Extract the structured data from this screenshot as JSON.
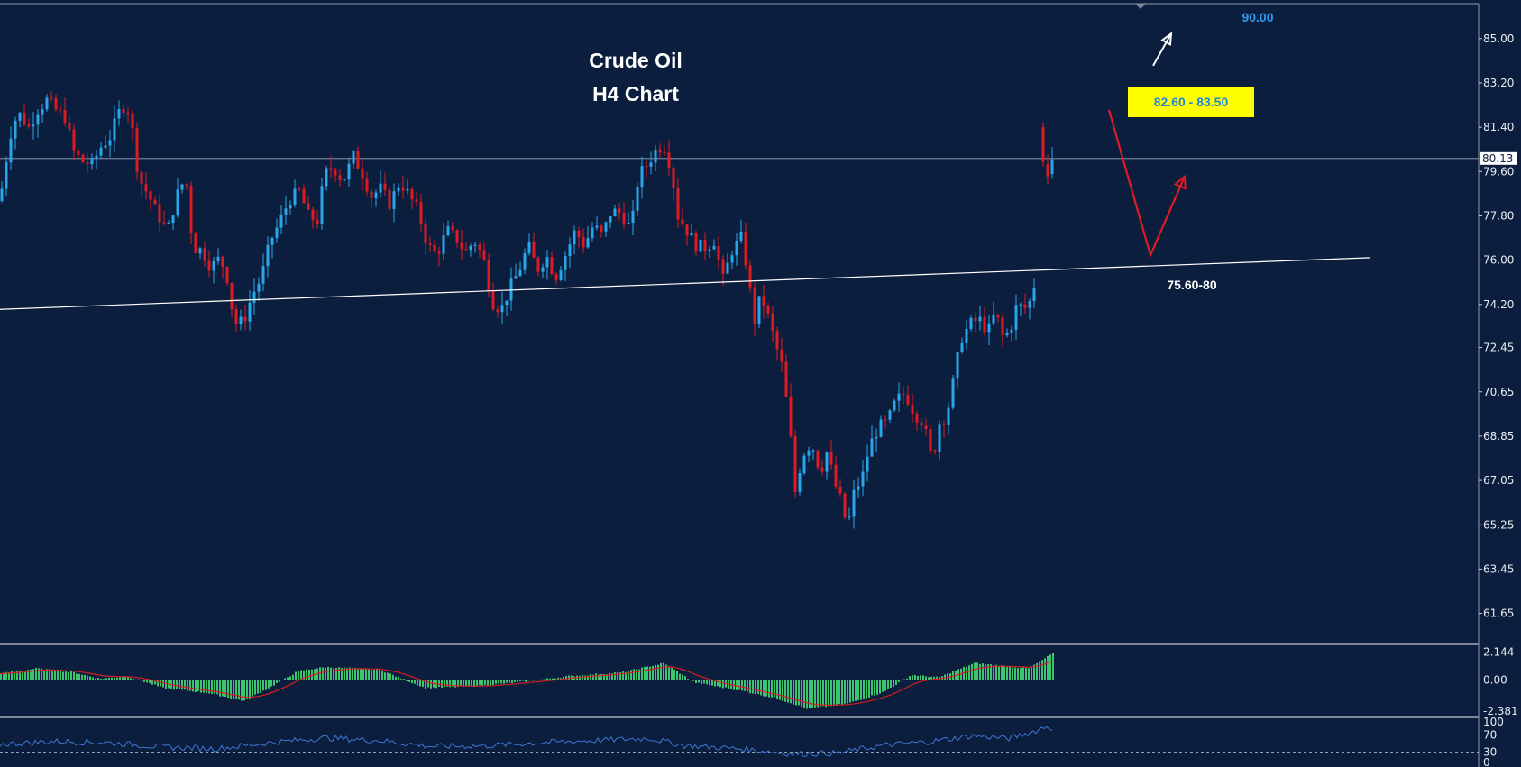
{
  "colors": {
    "background": "#0b1e3d",
    "bull": "#29a6ea",
    "bear": "#e01a22",
    "grid": "#ffffff",
    "macd_hist": "#3ec46d",
    "macd_signal": "#d21f1f",
    "rsi": "#3f76d6",
    "zone_box": "#ffff00",
    "zone_text": "#1e88d8",
    "target_text": "#2f9af0"
  },
  "chart_data": [
    {
      "type": "candlestick",
      "title": "Crude Oil",
      "subtitle": "H4 Chart",
      "ylim": [
        60.5,
        86.2
      ],
      "y_ticks": [
        "85.00",
        "83.20",
        "81.40",
        "79.60",
        "77.80",
        "76.00",
        "74.20",
        "72.45",
        "70.65",
        "68.85",
        "67.05",
        "65.25",
        "63.45",
        "61.65"
      ],
      "current_price": "80.13",
      "price_path": [
        [
          0,
          78.4
        ],
        [
          6,
          79.9
        ],
        [
          14,
          81.6
        ],
        [
          22,
          81.9
        ],
        [
          32,
          81.4
        ],
        [
          42,
          82.1
        ],
        [
          52,
          82.5
        ],
        [
          62,
          82.1
        ],
        [
          72,
          81.8
        ],
        [
          82,
          80.4
        ],
        [
          92,
          80.0
        ],
        [
          102,
          79.9
        ],
        [
          112,
          80.6
        ],
        [
          122,
          81.0
        ],
        [
          132,
          82.0
        ],
        [
          140,
          82.4
        ],
        [
          146,
          81.5
        ],
        [
          154,
          79.3
        ],
        [
          164,
          78.7
        ],
        [
          174,
          77.9
        ],
        [
          186,
          77.2
        ],
        [
          196,
          78.6
        ],
        [
          206,
          79.4
        ],
        [
          214,
          76.5
        ],
        [
          224,
          76.4
        ],
        [
          234,
          75.7
        ],
        [
          244,
          76.1
        ],
        [
          252,
          75.3
        ],
        [
          260,
          73.4
        ],
        [
          270,
          73.5
        ],
        [
          280,
          74.6
        ],
        [
          290,
          75.3
        ],
        [
          300,
          76.8
        ],
        [
          310,
          77.5
        ],
        [
          320,
          78.4
        ],
        [
          332,
          78.8
        ],
        [
          342,
          77.8
        ],
        [
          352,
          77.6
        ],
        [
          360,
          79.5
        ],
        [
          370,
          79.8
        ],
        [
          380,
          79.2
        ],
        [
          392,
          80.2
        ],
        [
          402,
          79.5
        ],
        [
          412,
          78.6
        ],
        [
          422,
          78.9
        ],
        [
          432,
          78.3
        ],
        [
          444,
          79.2
        ],
        [
          454,
          78.6
        ],
        [
          464,
          78.0
        ],
        [
          474,
          76.6
        ],
        [
          484,
          76.2
        ],
        [
          496,
          77.2
        ],
        [
          506,
          76.9
        ],
        [
          516,
          76.3
        ],
        [
          526,
          76.8
        ],
        [
          536,
          76.1
        ],
        [
          546,
          74.3
        ],
        [
          556,
          74.0
        ],
        [
          566,
          74.9
        ],
        [
          576,
          75.6
        ],
        [
          586,
          76.6
        ],
        [
          596,
          75.6
        ],
        [
          606,
          76.2
        ],
        [
          616,
          75.3
        ],
        [
          628,
          76.3
        ],
        [
          638,
          77.2
        ],
        [
          648,
          76.6
        ],
        [
          658,
          77.4
        ],
        [
          668,
          77.0
        ],
        [
          678,
          78.0
        ],
        [
          690,
          77.9
        ],
        [
          700,
          77.2
        ],
        [
          708,
          79.4
        ],
        [
          718,
          79.9
        ],
        [
          728,
          80.5
        ],
        [
          736,
          80.7
        ],
        [
          744,
          79.8
        ],
        [
          752,
          77.8
        ],
        [
          762,
          77.2
        ],
        [
          772,
          76.6
        ],
        [
          782,
          76.5
        ],
        [
          792,
          76.8
        ],
        [
          802,
          75.2
        ],
        [
          812,
          76.4
        ],
        [
          822,
          76.9
        ],
        [
          830,
          75.4
        ],
        [
          836,
          73.4
        ],
        [
          844,
          74.6
        ],
        [
          852,
          73.7
        ],
        [
          860,
          72.6
        ],
        [
          868,
          71.6
        ],
        [
          876,
          69.1
        ],
        [
          882,
          66.6
        ],
        [
          890,
          68.1
        ],
        [
          900,
          68.6
        ],
        [
          910,
          67.4
        ],
        [
          918,
          68.3
        ],
        [
          924,
          67.1
        ],
        [
          932,
          66.3
        ],
        [
          940,
          65.1
        ],
        [
          948,
          66.7
        ],
        [
          956,
          67.1
        ],
        [
          964,
          68.4
        ],
        [
          974,
          69.2
        ],
        [
          984,
          69.4
        ],
        [
          994,
          70.3
        ],
        [
          1004,
          70.6
        ],
        [
          1014,
          69.8
        ],
        [
          1024,
          69.4
        ],
        [
          1034,
          67.8
        ],
        [
          1042,
          69.4
        ],
        [
          1050,
          69.7
        ],
        [
          1058,
          71.2
        ],
        [
          1066,
          72.8
        ],
        [
          1076,
          73.4
        ],
        [
          1086,
          73.6
        ],
        [
          1096,
          73.1
        ],
        [
          1104,
          73.9
        ],
        [
          1112,
          72.9
        ],
        [
          1120,
          73.1
        ],
        [
          1128,
          74.2
        ],
        [
          1136,
          74.0
        ],
        [
          1144,
          74.4
        ],
        [
          1150,
          75.6
        ]
      ],
      "gap_bars": [
        {
          "x": 1157,
          "open": 81.4,
          "high": 81.6,
          "low": 79.8,
          "close": 80.0
        },
        {
          "x": 1162,
          "open": 79.9,
          "high": 80.3,
          "low": 79.1,
          "close": 79.4
        },
        {
          "x": 1167,
          "open": 79.5,
          "high": 80.6,
          "low": 79.3,
          "close": 80.1
        }
      ],
      "trendline": {
        "from": [
          0,
          74.0
        ],
        "to": [
          1520,
          76.1
        ]
      },
      "annotations": {
        "support_label": "75.60-80",
        "zone_label": "82.60 - 83.50",
        "target_label": "90.00",
        "forecast_path": [
          [
            1230,
            82.1
          ],
          [
            1276,
            76.2
          ],
          [
            1314,
            79.4
          ]
        ],
        "target_arrow": [
          [
            1279,
            83.9
          ],
          [
            1299,
            85.2
          ]
        ]
      }
    },
    {
      "type": "bar",
      "indicator": "MACD",
      "y_ticks": [
        "2.144",
        "0.00",
        "-2.381"
      ],
      "ylim": [
        -2.6,
        2.4
      ],
      "histogram_path": [
        [
          0,
          0.5
        ],
        [
          40,
          0.9
        ],
        [
          80,
          0.6
        ],
        [
          110,
          0.1
        ],
        [
          140,
          0.3
        ],
        [
          180,
          -0.6
        ],
        [
          230,
          -1.0
        ],
        [
          270,
          -1.6
        ],
        [
          300,
          -0.5
        ],
        [
          330,
          0.7
        ],
        [
          360,
          1.0
        ],
        [
          420,
          0.8
        ],
        [
          470,
          -0.6
        ],
        [
          520,
          -0.5
        ],
        [
          570,
          -0.2
        ],
        [
          630,
          0.3
        ],
        [
          690,
          0.6
        ],
        [
          735,
          1.3
        ],
        [
          770,
          -0.2
        ],
        [
          820,
          -0.8
        ],
        [
          860,
          -1.4
        ],
        [
          895,
          -2.2
        ],
        [
          940,
          -1.8
        ],
        [
          980,
          -0.9
        ],
        [
          1010,
          0.4
        ],
        [
          1040,
          0.2
        ],
        [
          1080,
          1.3
        ],
        [
          1110,
          1.1
        ],
        [
          1140,
          0.9
        ],
        [
          1168,
          2.1
        ]
      ]
    },
    {
      "type": "line",
      "indicator": "RSI",
      "y_ticks": [
        "100",
        "70",
        "30",
        "0"
      ],
      "ylim": [
        0,
        100
      ],
      "levels": [
        70,
        30
      ],
      "values_path": [
        [
          0,
          48
        ],
        [
          60,
          55
        ],
        [
          120,
          52
        ],
        [
          180,
          42
        ],
        [
          240,
          38
        ],
        [
          300,
          52
        ],
        [
          360,
          63
        ],
        [
          420,
          57
        ],
        [
          480,
          43
        ],
        [
          540,
          45
        ],
        [
          600,
          52
        ],
        [
          660,
          57
        ],
        [
          720,
          62
        ],
        [
          760,
          45
        ],
        [
          820,
          38
        ],
        [
          880,
          26
        ],
        [
          930,
          28
        ],
        [
          980,
          46
        ],
        [
          1030,
          54
        ],
        [
          1080,
          68
        ],
        [
          1120,
          62
        ],
        [
          1150,
          80
        ],
        [
          1160,
          90
        ],
        [
          1167,
          86
        ]
      ]
    }
  ]
}
